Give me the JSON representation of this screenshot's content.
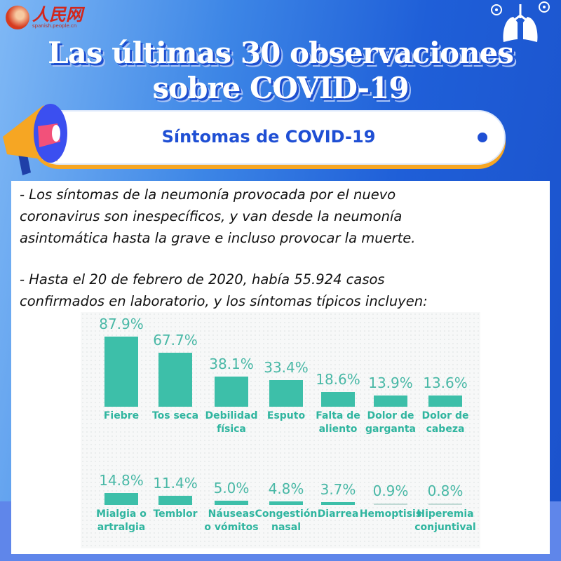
{
  "logo": {
    "text": "人民网",
    "url": "spanish.people.cn"
  },
  "title": {
    "line1": "Las últimas 30 observaciones",
    "line2": "sobre COVID-19"
  },
  "section": {
    "label": "Síntomas de COVID-19"
  },
  "paragraphs": [
    [
      "- Los síntomas de la neumonía provocada por el nuevo",
      "coronavirus son inespecíficos, y van desde la neumonía",
      "asintomática hasta la grave e incluso provocar la muerte."
    ],
    [
      "- Hasta el 20 de febrero de 2020, había 55.924 casos",
      "confirmados en laboratorio, y los síntomas típicos incluyen:"
    ]
  ],
  "colors": {
    "bar": "#3dbfa9",
    "label": "#2fb59f",
    "accent": "#1f4fd4",
    "background": "#1f5fd8"
  },
  "chart_data": {
    "type": "bar",
    "unit": "%",
    "rows": [
      {
        "categories": [
          [
            "Fiebre"
          ],
          [
            "Tos seca"
          ],
          [
            "Debilidad",
            "física"
          ],
          [
            "Esputo"
          ],
          [
            "Falta de",
            "aliento"
          ],
          [
            "Dolor de",
            "garganta"
          ],
          [
            "Dolor de",
            "cabeza"
          ]
        ],
        "values": [
          87.9,
          67.7,
          38.1,
          33.4,
          18.6,
          13.9,
          13.6
        ],
        "labels": [
          "87.9%",
          "67.7%",
          "38.1%",
          "33.4%",
          "18.6%",
          "13.9%",
          "13.6%"
        ]
      },
      {
        "categories": [
          [
            "Mialgia o",
            "artralgia"
          ],
          [
            "Temblor"
          ],
          [
            "Náuseas",
            "o vómitos"
          ],
          [
            "Congestión",
            "nasal"
          ],
          [
            "Diarrea"
          ],
          [
            "Hemoptisis"
          ],
          [
            "Hiperemia",
            "conjuntival"
          ]
        ],
        "values": [
          14.8,
          11.4,
          5.0,
          4.8,
          3.7,
          0.9,
          0.8
        ],
        "labels": [
          "14.8%",
          "11.4%",
          "5.0%",
          "4.8%",
          "3.7%",
          "0.9%",
          "0.8%"
        ]
      }
    ]
  }
}
